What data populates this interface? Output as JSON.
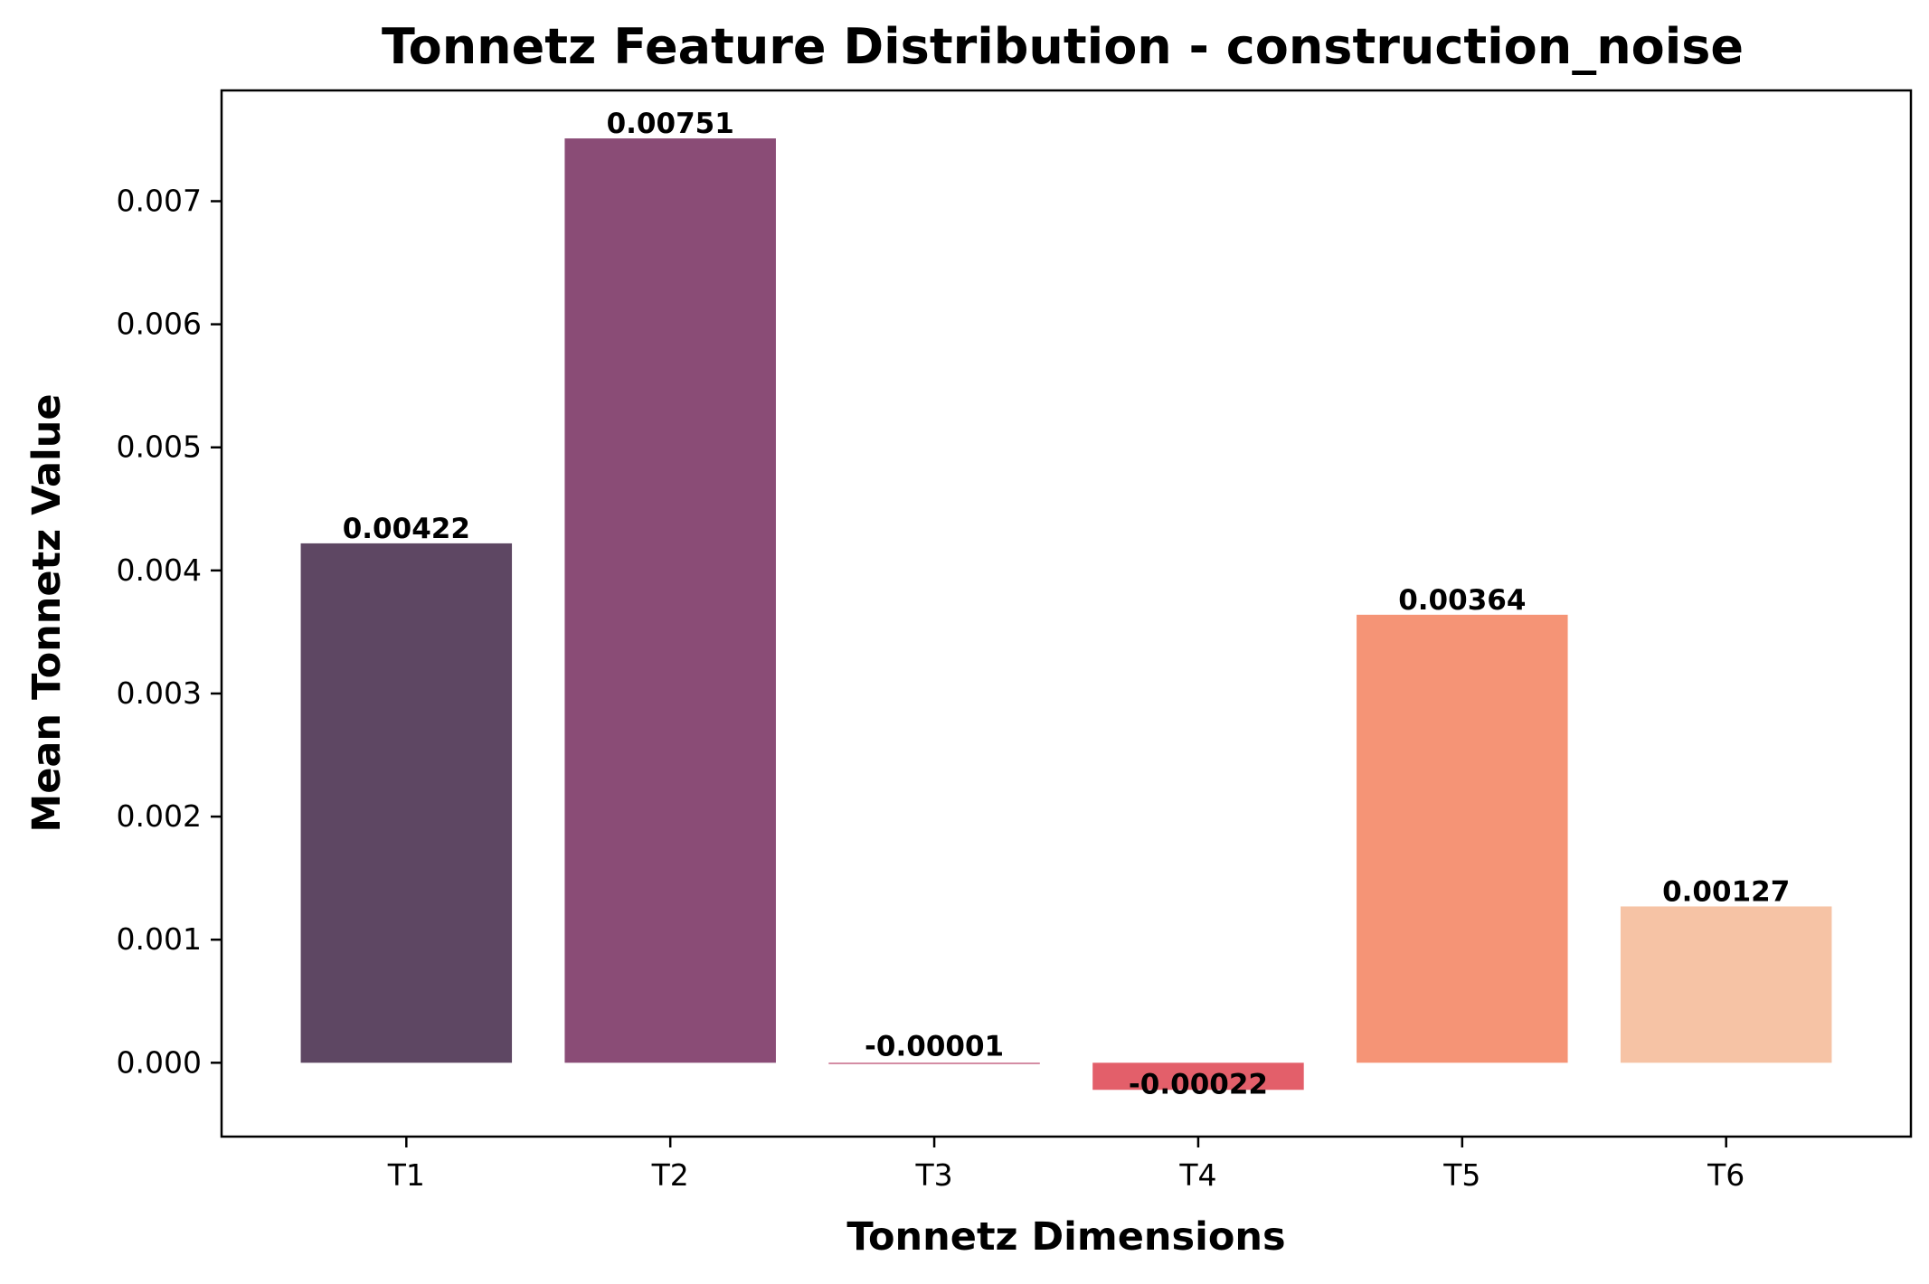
{
  "chart_data": {
    "type": "bar",
    "title": "Tonnetz Feature Distribution - construction_noise",
    "xlabel": "Tonnetz Dimensions",
    "ylabel": "Mean Tonnetz Value",
    "categories": [
      "T1",
      "T2",
      "T3",
      "T4",
      "T5",
      "T6"
    ],
    "values": [
      0.00422,
      0.00751,
      -1e-05,
      -0.00022,
      0.00364,
      0.00127
    ],
    "data_labels": [
      "0.00422",
      "0.00751",
      "-0.00001",
      "-0.00022",
      "0.00364",
      "0.00127"
    ],
    "colors": [
      "#5e4763",
      "#8a4c76",
      "#c05a7a",
      "#e35f6a",
      "#f59476",
      "#f6c3a5"
    ],
    "ylim": [
      -0.0006,
      0.0079
    ],
    "yticks": [
      0.0,
      0.001,
      0.002,
      0.003,
      0.004,
      0.005,
      0.006,
      0.007
    ],
    "ytick_labels": [
      "0.000",
      "0.001",
      "0.002",
      "0.003",
      "0.004",
      "0.005",
      "0.006",
      "0.007"
    ],
    "grid": false,
    "legend": "none"
  }
}
